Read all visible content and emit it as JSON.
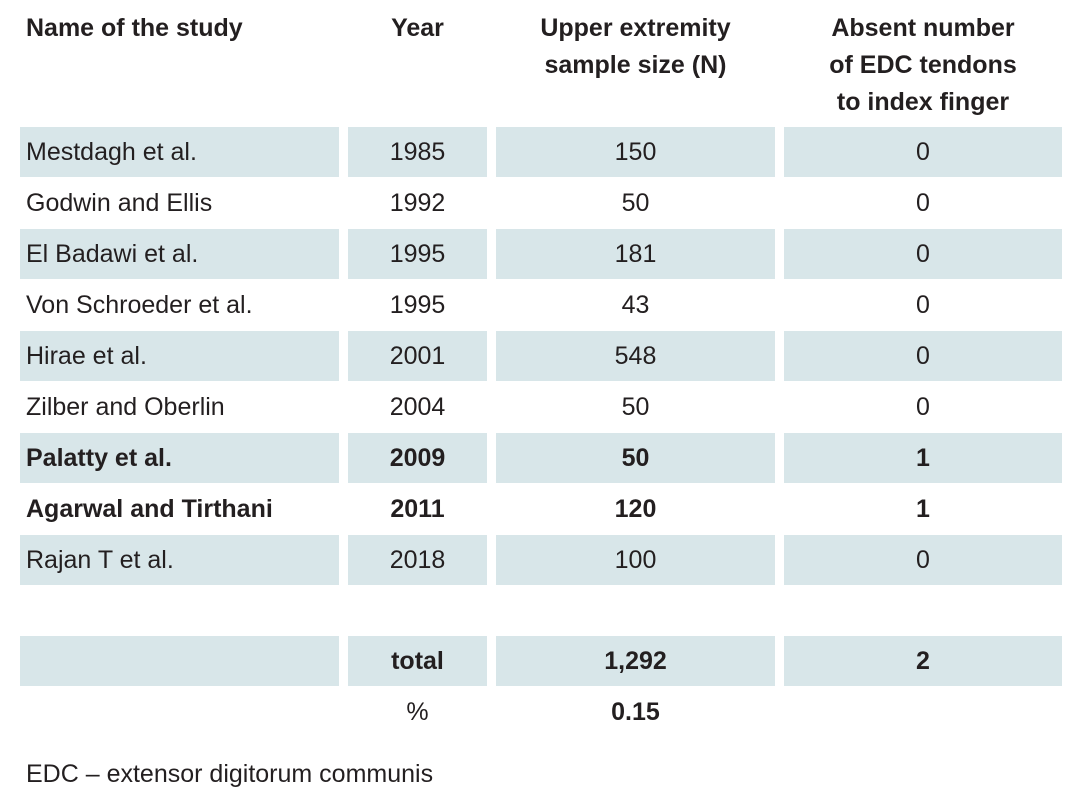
{
  "headers": {
    "name": "Name of the study",
    "year": "Year",
    "sample_line1": "Upper extremity",
    "sample_line2": "sample size (N)",
    "absent_line1": "Absent number",
    "absent_line2": "of EDC tendons",
    "absent_line3": "to index finger"
  },
  "rows": [
    {
      "name": "Mestdagh et al.",
      "year": "1985",
      "sample": "150",
      "absent": "0"
    },
    {
      "name": "Godwin and Ellis",
      "year": "1992",
      "sample": "50",
      "absent": "0"
    },
    {
      "name": "El Badawi et al.",
      "year": "1995",
      "sample": "181",
      "absent": "0"
    },
    {
      "name": "Von Schroeder et al.",
      "year": "1995",
      "sample": "43",
      "absent": "0"
    },
    {
      "name": "Hirae et al.",
      "year": "2001",
      "sample": "548",
      "absent": "0"
    },
    {
      "name": "Zilber and Oberlin",
      "year": "2004",
      "sample": "50",
      "absent": "0"
    },
    {
      "name": "Palatty et al.",
      "year": "2009",
      "sample": "50",
      "absent": "1"
    },
    {
      "name": "Agarwal and Tirthani",
      "year": "2011",
      "sample": "120",
      "absent": "1"
    },
    {
      "name": "Rajan T et al.",
      "year": "2018",
      "sample": "100",
      "absent": "0"
    }
  ],
  "total": {
    "label": "total",
    "sample": "1,292",
    "absent": "2"
  },
  "percent": {
    "label": "%",
    "value": "0.15"
  },
  "footnote": "EDC – extensor digitorum communis",
  "colors": {
    "shade": "#d8e6e9",
    "text": "#231f20"
  }
}
